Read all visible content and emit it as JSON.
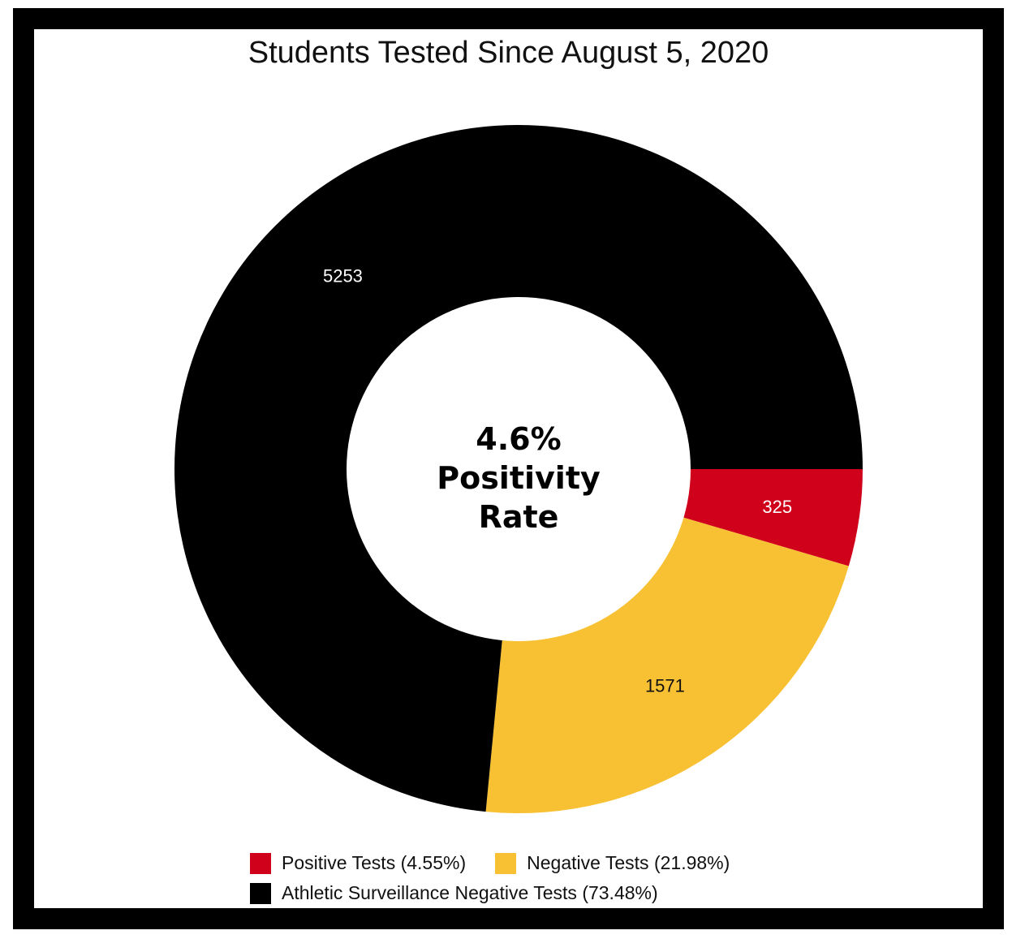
{
  "chart_data": {
    "type": "pie",
    "title": "Students Tested Since August 5, 2020",
    "center_text": [
      "4.6%",
      "Positivity",
      "Rate"
    ],
    "series": [
      {
        "name": "Positive Tests (4.55%)",
        "value": 325,
        "label": "325",
        "color": "#d0021b",
        "label_color": "#ffffff"
      },
      {
        "name": "Negative Tests (21.98%)",
        "value": 1571,
        "label": "1571",
        "color": "#f8c033",
        "label_color": "#111111"
      },
      {
        "name": "Athletic Surveillance Negative Tests (73.48%)",
        "value": 5253,
        "label": "5253",
        "color": "#000000",
        "label_color": "#ffffff"
      }
    ],
    "legend_position": "bottom"
  }
}
